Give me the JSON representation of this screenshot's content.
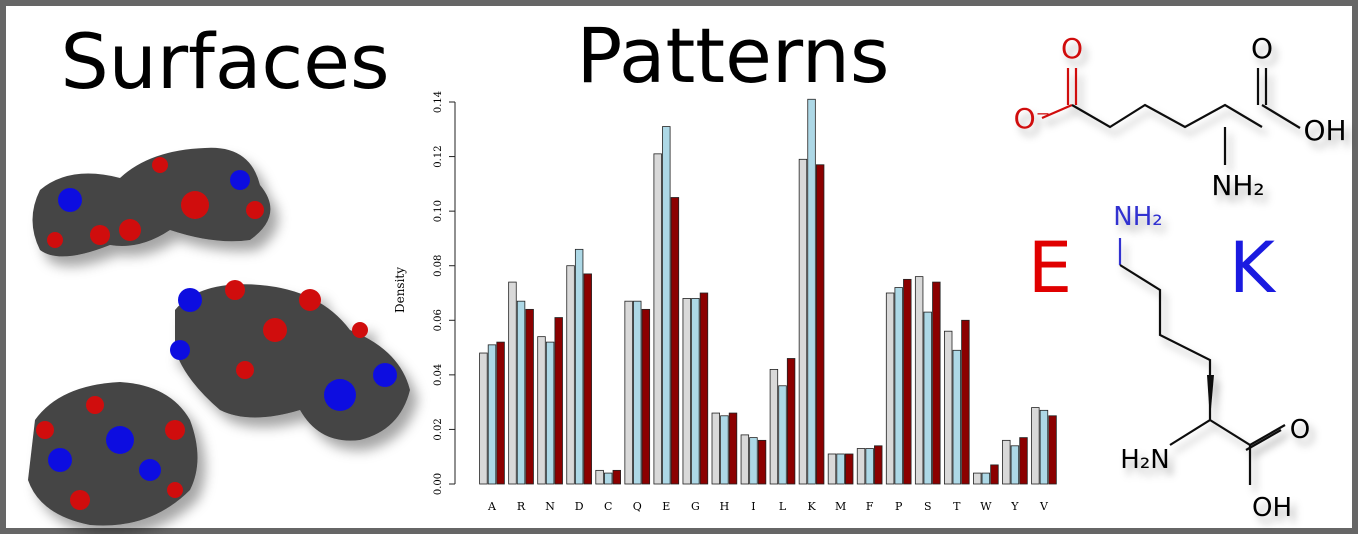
{
  "chart_data": {
    "type": "bar",
    "y_label": "Density",
    "categories": [
      "A",
      "R",
      "N",
      "D",
      "C",
      "Q",
      "E",
      "G",
      "H",
      "I",
      "L",
      "K",
      "M",
      "F",
      "P",
      "S",
      "T",
      "W",
      "Y",
      "V"
    ],
    "series": [
      {
        "color": "#d9d9d9",
        "values": [
          0.048,
          0.074,
          0.054,
          0.08,
          0.005,
          0.067,
          0.121,
          0.068,
          0.026,
          0.018,
          0.042,
          0.119,
          0.011,
          0.013,
          0.07,
          0.076,
          0.056,
          0.004,
          0.016,
          0.028
        ]
      },
      {
        "color": "#add8e6",
        "values": [
          0.051,
          0.067,
          0.052,
          0.086,
          0.004,
          0.067,
          0.131,
          0.068,
          0.025,
          0.017,
          0.036,
          0.141,
          0.011,
          0.013,
          0.072,
          0.063,
          0.049,
          0.004,
          0.014,
          0.027
        ]
      },
      {
        "color": "#8b0000",
        "values": [
          0.052,
          0.064,
          0.061,
          0.077,
          0.005,
          0.064,
          0.105,
          0.07,
          0.026,
          0.016,
          0.046,
          0.117,
          0.011,
          0.014,
          0.075,
          0.074,
          0.06,
          0.007,
          0.017,
          0.025
        ]
      }
    ],
    "ylim": [
      0,
      0.14
    ],
    "yticks": [
      {
        "value": 0,
        "label": "0.00"
      },
      {
        "value": 0.02,
        "label": "0.02"
      },
      {
        "value": 0.04,
        "label": "0.04"
      },
      {
        "value": 0.06,
        "label": "0.06"
      },
      {
        "value": 0.08,
        "label": "0.08"
      },
      {
        "value": 0.1,
        "label": "0.10"
      },
      {
        "value": 0.12,
        "label": "0.12"
      },
      {
        "value": 0.14,
        "label": "0.14"
      }
    ]
  },
  "headings": {
    "left": "Surfaces",
    "center": "Patterns"
  },
  "letters": {
    "glutamate": "E",
    "lysine": "K"
  },
  "glutamate_atoms": [
    "O",
    "O⁻",
    "O",
    "OH",
    "NH₂"
  ],
  "lysine_atoms": [
    "NH₂",
    "H₂N",
    "O",
    "OH"
  ]
}
